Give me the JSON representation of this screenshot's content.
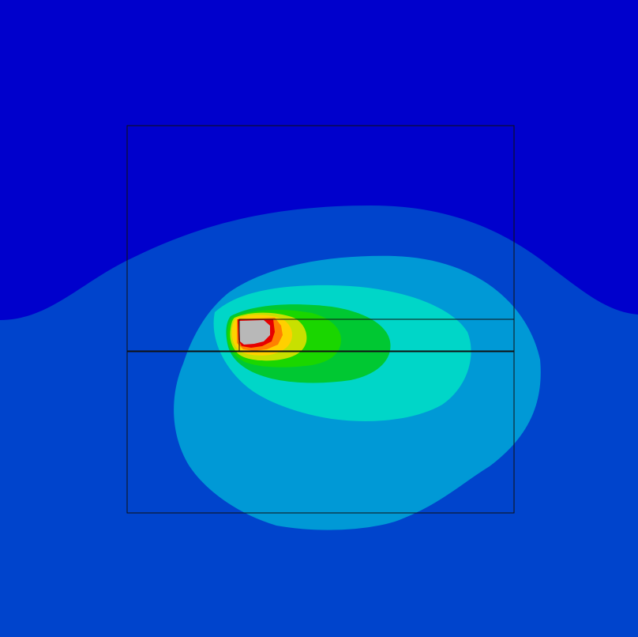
{
  "plot": {
    "type": "filled-contour",
    "colors": {
      "band_0": "#0000cc",
      "band_1": "#0044cc",
      "band_2": "#0099d6",
      "band_3": "#00d6c8",
      "band_4": "#00c832",
      "band_5": "#1ad600",
      "band_6": "#c8e000",
      "band_7": "#ffd000",
      "band_8": "#ff8000",
      "band_9": "#e60000",
      "peak": "#b8b8b8",
      "outline": "#111111"
    },
    "outline_count": 3
  }
}
